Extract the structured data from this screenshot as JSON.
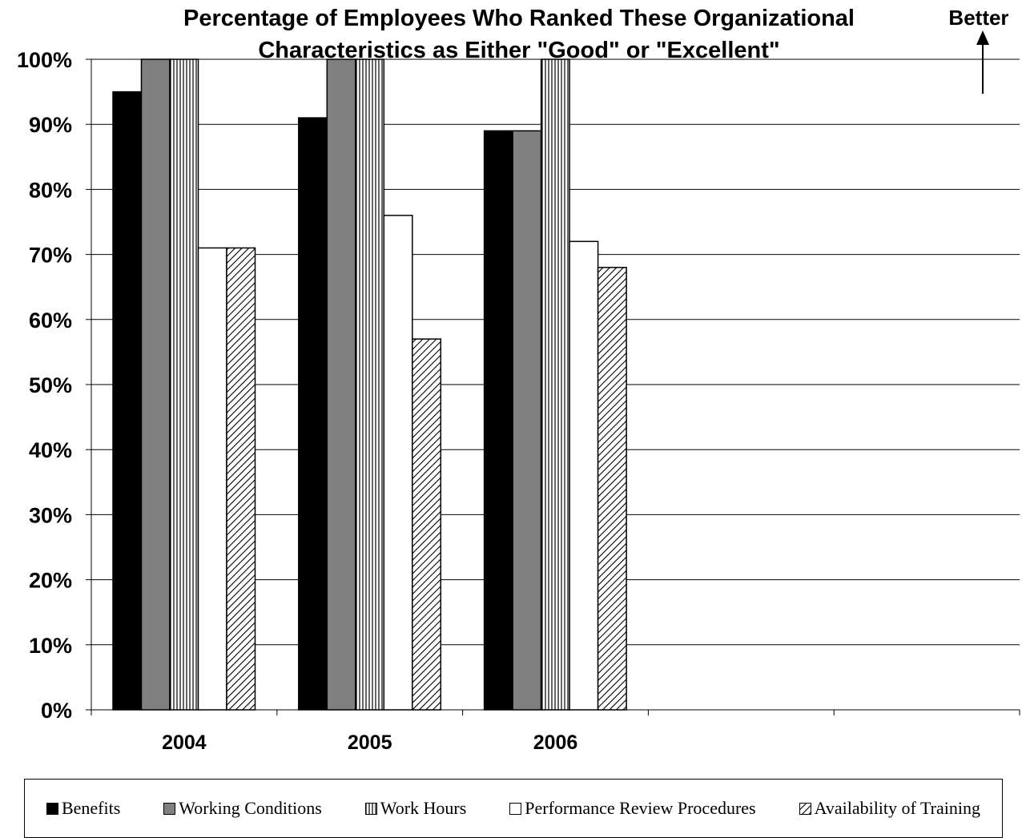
{
  "chart_data": {
    "type": "bar",
    "title_line1": "Percentage of Employees Who Ranked These Organizational",
    "title_line2": "Characteristics as Either \"Good\" or \"Excellent\"",
    "annotation": "Better",
    "categories": [
      "2004",
      "2005",
      "2006",
      "",
      ""
    ],
    "series": [
      {
        "name": "Benefits",
        "values": [
          95,
          91,
          89,
          null,
          null
        ],
        "color": "#000000",
        "pattern": "solid"
      },
      {
        "name": "Working Conditions",
        "values": [
          100,
          100,
          89,
          null,
          null
        ],
        "color": "#808080",
        "pattern": "solid"
      },
      {
        "name": "Work Hours",
        "values": [
          100,
          100,
          100,
          null,
          null
        ],
        "color": "#ffffff",
        "pattern": "vertical-lines"
      },
      {
        "name": "Performance Review Procedures",
        "values": [
          71,
          76,
          72,
          null,
          null
        ],
        "color": "#ffffff",
        "pattern": "solid"
      },
      {
        "name": "Availability of Training",
        "values": [
          71,
          57,
          68,
          null,
          null
        ],
        "color": "#ffffff",
        "pattern": "diagonal-lines"
      }
    ],
    "yticks": [
      "0%",
      "10%",
      "20%",
      "30%",
      "40%",
      "50%",
      "60%",
      "70%",
      "80%",
      "90%",
      "100%"
    ],
    "ylim": [
      0,
      100
    ],
    "grid": true,
    "legend_position": "bottom"
  }
}
